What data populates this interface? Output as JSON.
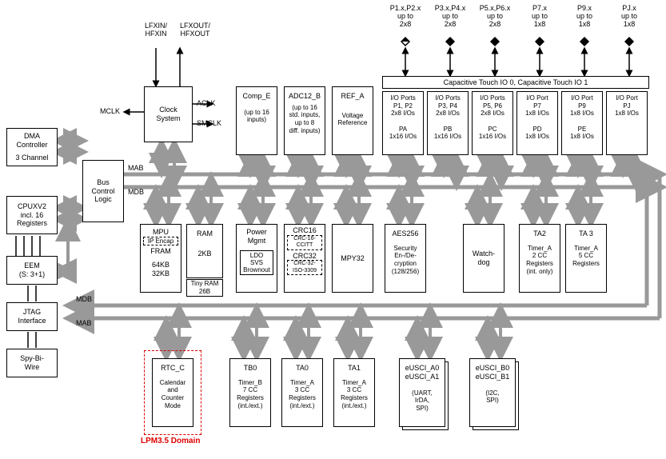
{
  "diagram": {
    "type": "block-diagram",
    "colors": {
      "bus": "#999999",
      "border": "#000000",
      "lpm": "#dd0000",
      "bg": "#ffffff"
    },
    "buses": {
      "mab": "MAB",
      "mdb": "MDB"
    },
    "top_pins": [
      {
        "label": "P1.x,P2.x",
        "sub": "up to\n2x8"
      },
      {
        "label": "P3.x,P4.x",
        "sub": "up to\n2x8"
      },
      {
        "label": "P5.x,P6.x",
        "sub": "up to\n2x8"
      },
      {
        "label": "P7.x",
        "sub": "up to\n1x8"
      },
      {
        "label": "P9.x",
        "sub": "up to\n1x8"
      },
      {
        "label": "PJ.x",
        "sub": "up to\n1x8"
      }
    ],
    "clock_pins": {
      "in": "LFXIN/\nHFXIN",
      "out": "LFXOUT/\nHFXOUT"
    },
    "clock_signals": {
      "mclk": "MCLK",
      "aclk": "ACLK",
      "smclk": "SMCLK"
    },
    "cap_touch": "Capacitive Touch IO 0, Capacitive Touch IO 1",
    "left_blocks": [
      {
        "name": "dma",
        "l1": "DMA",
        "l2": "Controller",
        "l3": "3 Channel"
      },
      {
        "name": "cpu",
        "l1": "CPUXV2",
        "l2": "incl. 16",
        "l3": "Registers"
      },
      {
        "name": "eem",
        "l1": "EEM",
        "l2": "(S: 3+1)"
      },
      {
        "name": "jtag",
        "l1": "JTAG",
        "l2": "Interface"
      },
      {
        "name": "spy",
        "l1": "Spy-Bi-",
        "l2": "Wire"
      }
    ],
    "bus_ctrl": "Bus\nControl\nLogic",
    "clock_sys": "Clock\nSystem",
    "top_row": [
      {
        "name": "compe",
        "title": "Comp_E",
        "sub": "(up to 16\ninputs)"
      },
      {
        "name": "adc",
        "title": "ADC12_B",
        "sub": "(up to 16\nstd. inputs,\nup to 8\ndiff. inputs)"
      },
      {
        "name": "ref",
        "title": "REF_A",
        "sub": "Voltage\nReference"
      }
    ],
    "io_ports": [
      {
        "p": "I/O Ports\nP1, P2\n2x8 I/Os",
        "pa": "PA\n1x16 I/Os"
      },
      {
        "p": "I/O Ports\nP3, P4\n2x8 I/Os",
        "pa": "PB\n1x16 I/Os"
      },
      {
        "p": "I/O Ports\nP5, P6\n2x8 I/Os",
        "pa": "PC\n1x16 I/Os"
      },
      {
        "p": "I/O Port\nP7\n1x8 I/Os",
        "pa": "PD\n1x8 I/Os"
      },
      {
        "p": "I/O Port\nP9\n1x8 I/Os",
        "pa": "PE\n1x8 I/Os"
      },
      {
        "p": "I/O Port\nPJ\n1x8 I/Os",
        "pa": ""
      }
    ],
    "mid_row": [
      {
        "name": "mpu",
        "title": "MPU",
        "dash": "IP Encap",
        "sub": "FRAM",
        "sub2": "64KB\n32KB"
      },
      {
        "name": "ram",
        "title": "RAM",
        "sub": "2KB",
        "tiny": "Tiny RAM\n26B"
      },
      {
        "name": "pwr",
        "title": "Power\nMgmt",
        "box1": "LDO\nSVS\nBrownout"
      },
      {
        "name": "crc",
        "title": "CRC16",
        "d1": "CRC-16-\nCCITT",
        "t2": "CRC32",
        "d2": "CRC-32-\nISO-3309"
      },
      {
        "name": "mpy",
        "title": "MPY32"
      },
      {
        "name": "aes",
        "title": "AES256",
        "sub": "Security\nEn-/De-\ncryption\n(128/256)"
      },
      {
        "name": "wd",
        "title": "Watch-\ndog"
      },
      {
        "name": "ta2",
        "title": "TA2",
        "sub": "Timer_A\n2 CC\nRegisters\n(int. only)"
      },
      {
        "name": "ta3",
        "title": "TA 3",
        "sub": "Timer_A\n5 CC\nRegisters"
      }
    ],
    "bot_row": [
      {
        "name": "rtc",
        "title": "RTC_C",
        "sub": "Calendar\nand\nCounter\nMode"
      },
      {
        "name": "tb0",
        "title": "TB0",
        "sub": "Timer_B\n7 CC\nRegisters\n(int./ext.)"
      },
      {
        "name": "ta0",
        "title": "TA0",
        "sub": "Timer_A\n3 CC\nRegisters\n(int./ext.)"
      },
      {
        "name": "ta1",
        "title": "TA1",
        "sub": "Timer_A\n3 CC\nRegisters\n(int./ext.)"
      },
      {
        "name": "eusci-a",
        "title": "eUSCI_A0\neUSCI_A1",
        "sub": "(UART,\nIrDA,\nSPI)"
      },
      {
        "name": "eusci-b",
        "title": "eUSCI_B0\neUSCI_B1",
        "sub": "(I2C,\nSPI)"
      }
    ],
    "lpm_label": "LPM3.5 Domain"
  }
}
